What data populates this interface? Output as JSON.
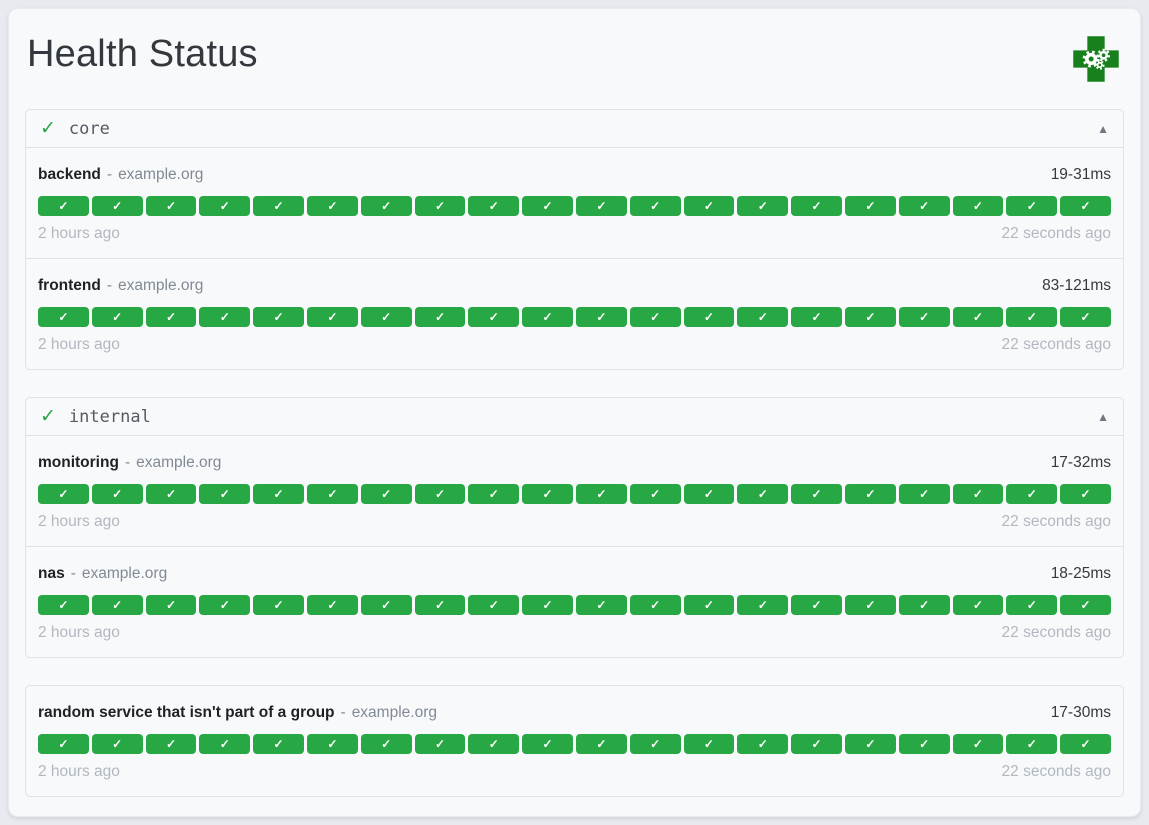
{
  "ui": {
    "title": "Health Status",
    "logo": "health-cross-gears-logo",
    "check_glyph": "✓",
    "collapse_glyph": "▲",
    "separator": "-"
  },
  "colors": {
    "success": "#28a745",
    "logo_green": "#17801d"
  },
  "groups": [
    {
      "name": "core",
      "healthy": true,
      "services": [
        {
          "name": "backend",
          "host": "example.org",
          "response_time": "19-31ms",
          "oldest_result": "2 hours ago",
          "newest_result": "22 seconds ago",
          "checks": 20,
          "status": "success"
        },
        {
          "name": "frontend",
          "host": "example.org",
          "response_time": "83-121ms",
          "oldest_result": "2 hours ago",
          "newest_result": "22 seconds ago",
          "checks": 20,
          "status": "success"
        }
      ]
    },
    {
      "name": "internal",
      "healthy": true,
      "services": [
        {
          "name": "monitoring",
          "host": "example.org",
          "response_time": "17-32ms",
          "oldest_result": "2 hours ago",
          "newest_result": "22 seconds ago",
          "checks": 20,
          "status": "success"
        },
        {
          "name": "nas",
          "host": "example.org",
          "response_time": "18-25ms",
          "oldest_result": "2 hours ago",
          "newest_result": "22 seconds ago",
          "checks": 20,
          "status": "success"
        }
      ]
    },
    {
      "name": "",
      "standalone": true,
      "services": [
        {
          "name": "random service that isn't part of a group",
          "host": "example.org",
          "response_time": "17-30ms",
          "oldest_result": "2 hours ago",
          "newest_result": "22 seconds ago",
          "checks": 20,
          "status": "success"
        }
      ]
    }
  ]
}
